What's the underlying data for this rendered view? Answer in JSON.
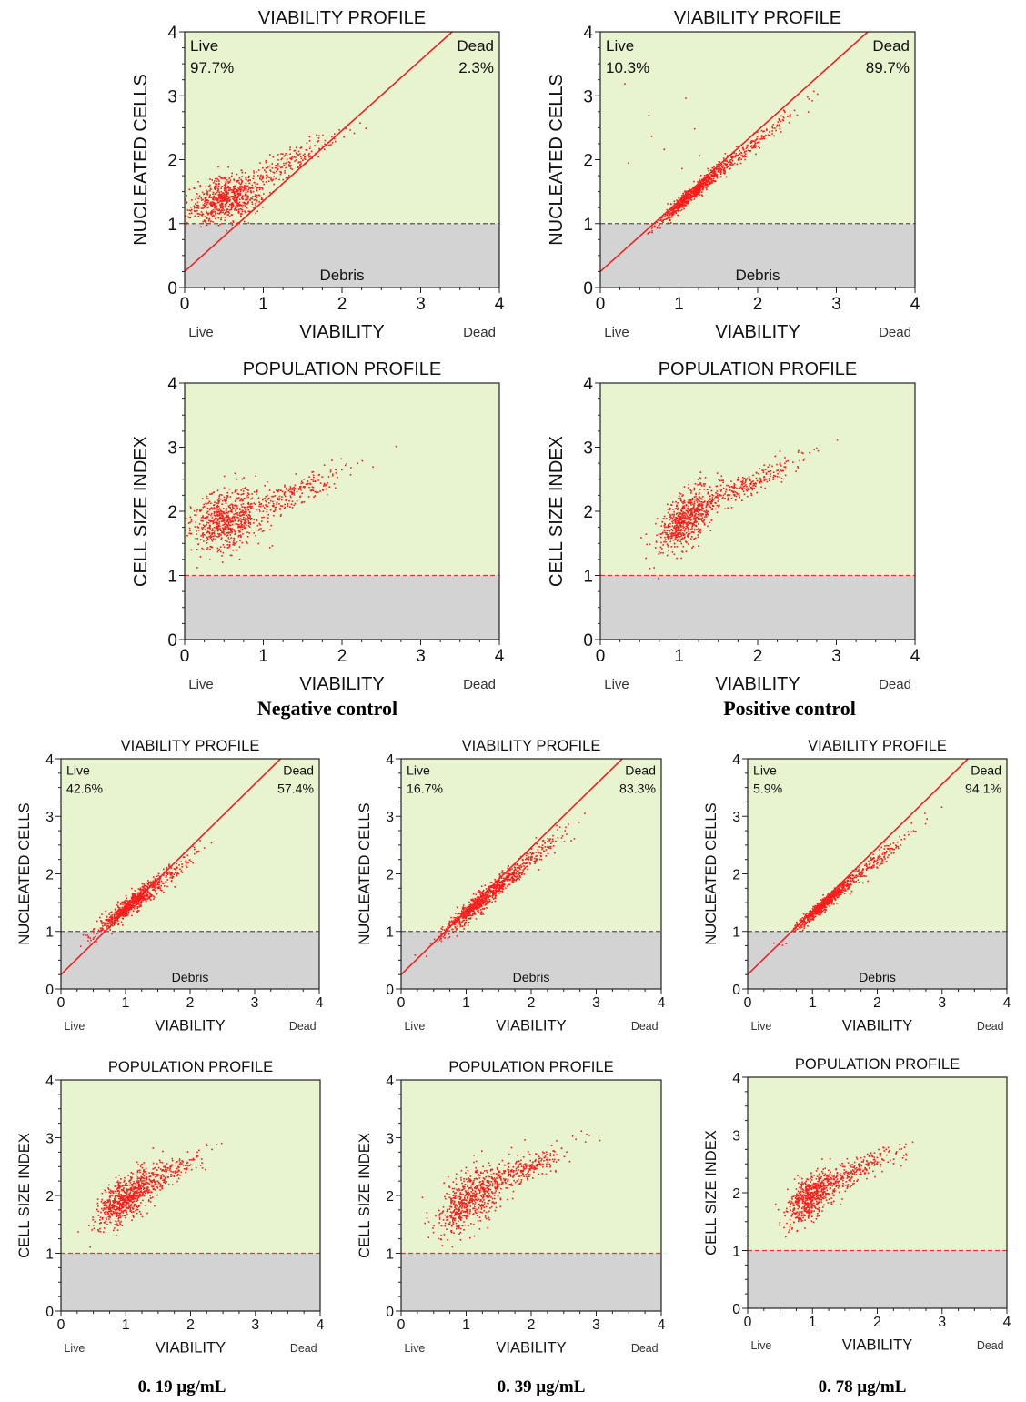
{
  "colors": {
    "plot_bg": "#e8f3cf",
    "debris_bg": "#d3d3d3",
    "dots": "#ff1a1a",
    "gate_line": "#ee2222",
    "dashed_gray": "#555555",
    "dashed_red": "#ee3333"
  },
  "captions": {
    "negative": "Negative control",
    "positive": "Positive control",
    "c019": "0. 19 μg/mL",
    "c039": "0. 39 μg/mL",
    "c078": "0. 78 μg/mL"
  },
  "chart_data": [
    {
      "id": "neg-viability",
      "type": "scatter",
      "kind": "viability",
      "title": "VIABILITY PROFILE",
      "ylabel": "NUCLEATED CELLS",
      "xlabel": "VIABILITY",
      "x_left_label": "Live",
      "x_right_label": "Dead",
      "xlim": [
        0,
        4
      ],
      "ylim": [
        0,
        4
      ],
      "xticks": [
        "0",
        "1",
        "2",
        "3",
        "4"
      ],
      "yticks": [
        "0",
        "1",
        "2",
        "3",
        "4"
      ],
      "gate_line": {
        "x1": 0,
        "y1": 0.25,
        "x2": 3.4,
        "y2": 4
      },
      "threshold_y": 1,
      "quadrants": {
        "live_label": "Live",
        "live_pct": "97.7%",
        "dead_label": "Dead",
        "dead_pct": "2.3%"
      },
      "region_label": "Debris",
      "clusters": [
        {
          "n": 650,
          "cx": 0.55,
          "cy": 1.4,
          "sx": 0.22,
          "sy": 0.18,
          "rho": 0.3
        },
        {
          "n": 200,
          "cx": 1.3,
          "cy": 1.95,
          "sx": 0.35,
          "sy": 0.25,
          "rho": 0.92
        },
        {
          "n": 40,
          "cx": 0.25,
          "cy": 1.25,
          "sx": 0.12,
          "sy": 0.12,
          "rho": 0
        }
      ]
    },
    {
      "id": "pos-viability",
      "type": "scatter",
      "kind": "viability",
      "title": "VIABILITY PROFILE",
      "ylabel": "NUCLEATED CELLS",
      "xlabel": "VIABILITY",
      "x_left_label": "Live",
      "x_right_label": "Dead",
      "xlim": [
        0,
        4
      ],
      "ylim": [
        0,
        4
      ],
      "xticks": [
        "0",
        "1",
        "2",
        "3",
        "4"
      ],
      "yticks": [
        "0",
        "1",
        "2",
        "3",
        "4"
      ],
      "gate_line": {
        "x1": 0,
        "y1": 0.25,
        "x2": 3.4,
        "y2": 4
      },
      "threshold_y": 1,
      "quadrants": {
        "live_label": "Live",
        "live_pct": "10.3%",
        "dead_label": "Dead",
        "dead_pct": "89.7%"
      },
      "region_label": "Debris",
      "clusters": [
        {
          "n": 650,
          "cx": 1.15,
          "cy": 1.45,
          "sx": 0.2,
          "sy": 0.22,
          "rho": 0.97
        },
        {
          "n": 250,
          "cx": 1.75,
          "cy": 2.05,
          "sx": 0.35,
          "sy": 0.35,
          "rho": 0.98
        },
        {
          "n": 10,
          "cx": 0.9,
          "cy": 2.3,
          "sx": 0.5,
          "sy": 0.5,
          "rho": 0
        }
      ]
    },
    {
      "id": "neg-population",
      "type": "scatter",
      "kind": "population",
      "title": "POPULATION PROFILE",
      "ylabel": "CELL SIZE INDEX",
      "xlabel": "VIABILITY",
      "x_left_label": "Live",
      "x_right_label": "Dead",
      "xlim": [
        0,
        4
      ],
      "ylim": [
        0,
        4
      ],
      "xticks": [
        "0",
        "1",
        "2",
        "3",
        "4"
      ],
      "yticks": [
        "0",
        "1",
        "2",
        "3",
        "4"
      ],
      "threshold_y": 1,
      "clusters": [
        {
          "n": 700,
          "cx": 0.55,
          "cy": 1.85,
          "sx": 0.24,
          "sy": 0.25,
          "rho": 0.3
        },
        {
          "n": 220,
          "cx": 1.4,
          "cy": 2.3,
          "sx": 0.32,
          "sy": 0.2,
          "rho": 0.85
        }
      ]
    },
    {
      "id": "pos-population",
      "type": "scatter",
      "kind": "population",
      "title": "POPULATION PROFILE",
      "ylabel": "CELL SIZE INDEX",
      "xlabel": "VIABILITY",
      "x_left_label": "Live",
      "x_right_label": "Dead",
      "xlim": [
        0,
        4
      ],
      "ylim": [
        0,
        4
      ],
      "xticks": [
        "0",
        "1",
        "2",
        "3",
        "4"
      ],
      "yticks": [
        "0",
        "1",
        "2",
        "3",
        "4"
      ],
      "threshold_y": 1,
      "clusters": [
        {
          "n": 650,
          "cx": 1.1,
          "cy": 1.9,
          "sx": 0.18,
          "sy": 0.25,
          "rho": 0.6
        },
        {
          "n": 260,
          "cx": 1.85,
          "cy": 2.4,
          "sx": 0.35,
          "sy": 0.22,
          "rho": 0.9
        }
      ]
    },
    {
      "id": "c019-viability",
      "type": "scatter",
      "kind": "viability",
      "title": "VIABILITY PROFILE",
      "ylabel": "NUCLEATED CELLS",
      "xlabel": "VIABILITY",
      "x_left_label": "Live",
      "x_right_label": "Dead",
      "xlim": [
        0,
        4
      ],
      "ylim": [
        0,
        4
      ],
      "xticks": [
        "0",
        "1",
        "2",
        "3",
        "4"
      ],
      "yticks": [
        "0",
        "1",
        "2",
        "3",
        "4"
      ],
      "gate_line": {
        "x1": 0,
        "y1": 0.25,
        "x2": 3.4,
        "y2": 4
      },
      "threshold_y": 1,
      "quadrants": {
        "live_label": "Live",
        "live_pct": "42.6%",
        "dead_label": "Dead",
        "dead_pct": "57.4%"
      },
      "region_label": "Debris",
      "clusters": [
        {
          "n": 600,
          "cx": 1.05,
          "cy": 1.45,
          "sx": 0.25,
          "sy": 0.24,
          "rho": 0.95
        },
        {
          "n": 180,
          "cx": 1.55,
          "cy": 1.85,
          "sx": 0.3,
          "sy": 0.3,
          "rho": 0.95
        }
      ]
    },
    {
      "id": "c039-viability",
      "type": "scatter",
      "kind": "viability",
      "title": "VIABILITY PROFILE",
      "ylabel": "NUCLEATED CELLS",
      "xlabel": "VIABILITY",
      "x_left_label": "Live",
      "x_right_label": "Dead",
      "xlim": [
        0,
        4
      ],
      "ylim": [
        0,
        4
      ],
      "xticks": [
        "0",
        "1",
        "2",
        "3",
        "4"
      ],
      "yticks": [
        "0",
        "1",
        "2",
        "3",
        "4"
      ],
      "gate_line": {
        "x1": 0,
        "y1": 0.25,
        "x2": 3.4,
        "y2": 4
      },
      "threshold_y": 1,
      "quadrants": {
        "live_label": "Live",
        "live_pct": "16.7%",
        "dead_label": "Dead",
        "dead_pct": "83.3%"
      },
      "region_label": "Debris",
      "clusters": [
        {
          "n": 600,
          "cx": 1.2,
          "cy": 1.5,
          "sx": 0.3,
          "sy": 0.3,
          "rho": 0.96
        },
        {
          "n": 220,
          "cx": 1.9,
          "cy": 2.15,
          "sx": 0.35,
          "sy": 0.35,
          "rho": 0.96
        }
      ]
    },
    {
      "id": "c078-viability",
      "type": "scatter",
      "kind": "viability",
      "title": "VIABILITY PROFILE",
      "ylabel": "NUCLEATED CELLS",
      "xlabel": "VIABILITY",
      "x_left_label": "Live",
      "x_right_label": "Dead",
      "xlim": [
        0,
        4
      ],
      "ylim": [
        0,
        4
      ],
      "xticks": [
        "0",
        "1",
        "2",
        "3",
        "4"
      ],
      "yticks": [
        "0",
        "1",
        "2",
        "3",
        "4"
      ],
      "gate_line": {
        "x1": 0,
        "y1": 0.25,
        "x2": 3.4,
        "y2": 4
      },
      "threshold_y": 1,
      "quadrants": {
        "live_label": "Live",
        "live_pct": "5.9%",
        "dead_label": "Dead",
        "dead_pct": "94.1%"
      },
      "region_label": "Debris",
      "clusters": [
        {
          "n": 550,
          "cx": 1.15,
          "cy": 1.45,
          "sx": 0.22,
          "sy": 0.22,
          "rho": 0.97
        },
        {
          "n": 200,
          "cx": 1.85,
          "cy": 2.1,
          "sx": 0.35,
          "sy": 0.33,
          "rho": 0.97
        }
      ]
    },
    {
      "id": "c019-population",
      "type": "scatter",
      "kind": "population",
      "title": "POPULATION PROFILE",
      "ylabel": "CELL SIZE INDEX",
      "xlabel": "VIABILITY",
      "x_left_label": "Live",
      "x_right_label": "Dead",
      "xlim": [
        0,
        4
      ],
      "ylim": [
        0,
        4
      ],
      "xticks": [
        "0",
        "1",
        "2",
        "3",
        "4"
      ],
      "yticks": [
        "0",
        "1",
        "2",
        "3",
        "4"
      ],
      "threshold_y": 1,
      "clusters": [
        {
          "n": 650,
          "cx": 1.0,
          "cy": 1.95,
          "sx": 0.22,
          "sy": 0.25,
          "rho": 0.65
        },
        {
          "n": 220,
          "cx": 1.6,
          "cy": 2.35,
          "sx": 0.3,
          "sy": 0.2,
          "rho": 0.85
        }
      ]
    },
    {
      "id": "c039-population",
      "type": "scatter",
      "kind": "population",
      "title": "POPULATION PROFILE",
      "ylabel": "CELL SIZE INDEX",
      "xlabel": "VIABILITY",
      "x_left_label": "Live",
      "x_right_label": "Dead",
      "xlim": [
        0,
        4
      ],
      "ylim": [
        0,
        4
      ],
      "xticks": [
        "0",
        "1",
        "2",
        "3",
        "4"
      ],
      "yticks": [
        "0",
        "1",
        "2",
        "3",
        "4"
      ],
      "threshold_y": 1,
      "clusters": [
        {
          "n": 600,
          "cx": 1.1,
          "cy": 1.95,
          "sx": 0.28,
          "sy": 0.3,
          "rho": 0.6
        },
        {
          "n": 260,
          "cx": 1.9,
          "cy": 2.45,
          "sx": 0.38,
          "sy": 0.22,
          "rho": 0.85
        }
      ]
    },
    {
      "id": "c078-population",
      "type": "scatter",
      "kind": "population",
      "title": "POPULATION PROFILE",
      "ylabel": "CELL SIZE INDEX",
      "xlabel": "VIABILITY",
      "x_left_label": "Live",
      "x_right_label": "Dead",
      "xlim": [
        0,
        4
      ],
      "ylim": [
        0,
        4
      ],
      "xticks": [
        "0",
        "1",
        "2",
        "3",
        "4"
      ],
      "yticks": [
        "0",
        "1",
        "2",
        "3",
        "4"
      ],
      "threshold_y": 1,
      "clusters": [
        {
          "n": 600,
          "cx": 1.0,
          "cy": 1.95,
          "sx": 0.2,
          "sy": 0.23,
          "rho": 0.6
        },
        {
          "n": 240,
          "cx": 1.7,
          "cy": 2.4,
          "sx": 0.33,
          "sy": 0.2,
          "rho": 0.85
        }
      ]
    }
  ]
}
